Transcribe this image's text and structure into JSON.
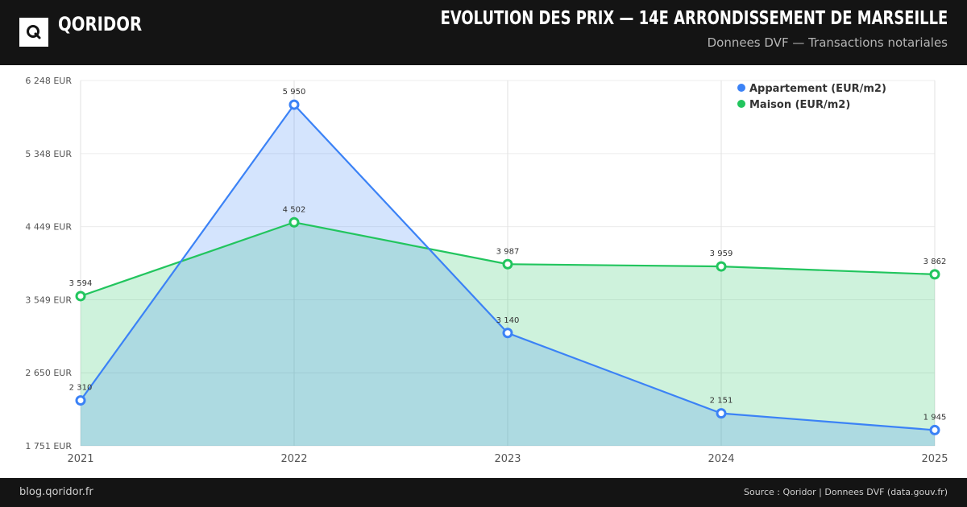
{
  "header": {
    "brand": "QORIDOR",
    "logo_letter": "Q",
    "title": "EVOLUTION DES PRIX — 14E ARRONDISSEMENT DE MARSEILLE",
    "subtitle": "Donnees DVF — Transactions notariales"
  },
  "footer": {
    "left": "blog.qoridor.fr",
    "right": "Source : Qoridor | Donnees DVF (data.gouv.fr)"
  },
  "colors": {
    "appartement": "#3b82f6",
    "appartement_fill": "#3b82f6",
    "maison": "#22c55e",
    "maison_fill": "#22c55e"
  },
  "chart_data": {
    "type": "area",
    "title": "",
    "xlabel": "",
    "ylabel": "",
    "categories": [
      "2021",
      "2022",
      "2023",
      "2024",
      "2025"
    ],
    "yticks": [
      1751,
      2650,
      3549,
      4449,
      5348,
      6248
    ],
    "ytick_labels": [
      "1 751 EUR",
      "2 650 EUR",
      "3 549 EUR",
      "4 449 EUR",
      "5 348 EUR",
      "6 248 EUR"
    ],
    "ylim": [
      1751,
      6248
    ],
    "grid": true,
    "legend_position": "top-right",
    "series": [
      {
        "name": "Appartement (EUR/m2)",
        "values": [
          2310,
          5950,
          3140,
          2151,
          1945
        ],
        "labels": [
          "2 310",
          "5 950",
          "3 140",
          "2 151",
          "1 945"
        ]
      },
      {
        "name": "Maison (EUR/m2)",
        "values": [
          3594,
          4502,
          3987,
          3959,
          3862
        ],
        "labels": [
          "3 594",
          "4 502",
          "3 987",
          "3 959",
          "3 862"
        ]
      }
    ]
  }
}
